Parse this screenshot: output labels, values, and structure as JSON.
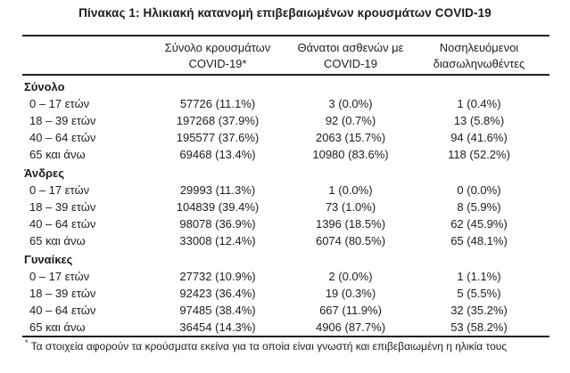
{
  "title": "Πίνακας 1: Ηλικιακή κατανομή επιβεβαιωμένων κρουσμάτων COVID-19",
  "colors": {
    "text": "#202020",
    "rule": "#1e1e1e",
    "background": "#ffffff"
  },
  "table": {
    "columns": [
      {
        "line1": "Σύνολο κρουσμάτων",
        "line2": "COVID-19*"
      },
      {
        "line1": "Θάνατοι ασθενών με",
        "line2": "COVID-19"
      },
      {
        "line1": "Νοσηλευόμενοι",
        "line2": "διασωληνωθέντες"
      }
    ],
    "sections": [
      {
        "header": "Σύνολο",
        "rows": [
          {
            "label": "0 – 17 ετών",
            "cases": "57726 (11.1%)",
            "deaths": "3 (0.0%)",
            "intubated": "1 (0.4%)"
          },
          {
            "label": "18 – 39 ετών",
            "cases": "197268 (37.9%)",
            "deaths": "92 (0.7%)",
            "intubated": "13 (5.8%)"
          },
          {
            "label": "40 – 64 ετών",
            "cases": "195577 (37.6%)",
            "deaths": "2063 (15.7%)",
            "intubated": "94 (41.6%)"
          },
          {
            "label": "65 και άνω",
            "cases": "69468 (13.4%)",
            "deaths": "10980 (83.6%)",
            "intubated": "118 (52.2%)"
          }
        ]
      },
      {
        "header": "Άνδρες",
        "rows": [
          {
            "label": "0 – 17 ετών",
            "cases": "29993 (11.3%)",
            "deaths": "1 (0.0%)",
            "intubated": "0 (0.0%)"
          },
          {
            "label": "18 – 39 ετών",
            "cases": "104839 (39.4%)",
            "deaths": "73 (1.0%)",
            "intubated": "8 (5.9%)"
          },
          {
            "label": "40 – 64 ετών",
            "cases": "98078 (36.9%)",
            "deaths": "1396 (18.5%)",
            "intubated": "62 (45.9%)"
          },
          {
            "label": "65 και άνω",
            "cases": "33008 (12.4%)",
            "deaths": "6074 (80.5%)",
            "intubated": "65 (48.1%)"
          }
        ]
      },
      {
        "header": "Γυναίκες",
        "rows": [
          {
            "label": "0 – 17 ετών",
            "cases": "27732 (10.9%)",
            "deaths": "2 (0.0%)",
            "intubated": "1 (1.1%)"
          },
          {
            "label": "18 – 39 ετών",
            "cases": "92423 (36.4%)",
            "deaths": "19 (0.3%)",
            "intubated": "5 (5.5%)"
          },
          {
            "label": "40 – 64 ετών",
            "cases": "97485 (38.4%)",
            "deaths": "667 (11.9%)",
            "intubated": "32 (35.2%)"
          },
          {
            "label": "65 και άνω",
            "cases": "36454 (14.3%)",
            "deaths": "4906 (87.7%)",
            "intubated": "53 (58.2%)"
          }
        ]
      }
    ]
  },
  "footnote": {
    "marker": "*",
    "text": "Τα στοιχεία αφορούν τα κρούσματα εκείνα για τα οποία είναι γνωστή και επιβεβαιωμένη η ηλικία τους"
  }
}
